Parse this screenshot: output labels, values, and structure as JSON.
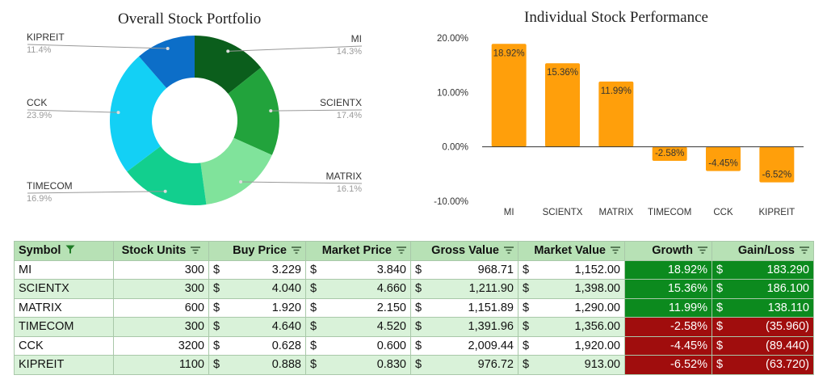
{
  "colors": {
    "donut": [
      "#0b5e1c",
      "#22a33c",
      "#80e39b",
      "#12cf8e",
      "#13d0f5",
      "#0c6ec8"
    ],
    "bar": "#ff9f0b",
    "header_bg": "#b7e1b5",
    "row_alt": "#d9f2d9",
    "growth_positive": "#0c8a1e",
    "growth_negative": "#a00d0d"
  },
  "chart_data": [
    {
      "type": "pie",
      "title": "Overall Stock Portfolio",
      "donut": true,
      "labels": [
        "MI",
        "SCIENTX",
        "MATRIX",
        "TIMECOM",
        "CCK",
        "KIPREIT"
      ],
      "values": [
        14.3,
        17.4,
        16.1,
        16.9,
        23.9,
        11.4
      ],
      "value_labels": [
        "14.3%",
        "17.4%",
        "16.1%",
        "16.9%",
        "23.9%",
        "11.4%"
      ],
      "legend": "none"
    },
    {
      "type": "bar",
      "title": "Individual Stock Performance",
      "categories": [
        "MI",
        "SCIENTX",
        "MATRIX",
        "TIMECOM",
        "CCK",
        "KIPREIT"
      ],
      "values": [
        18.92,
        15.36,
        11.99,
        -2.58,
        -4.45,
        -6.52
      ],
      "value_labels": [
        "18.92%",
        "15.36%",
        "11.99%",
        "-2.58%",
        "-4.45%",
        "-6.52%"
      ],
      "ylim": [
        -10,
        20
      ],
      "yticks": [
        20,
        10,
        0,
        -10
      ],
      "ytick_labels": [
        "20.00%",
        "10.00%",
        "0.00%",
        "-10.00%"
      ],
      "grid": false,
      "xlabel": "",
      "ylabel": ""
    }
  ],
  "table": {
    "headers": [
      "Symbol",
      "Stock Units",
      "Buy Price",
      "Market Price",
      "Gross Value",
      "Market Value",
      "Growth",
      "Gain/Loss"
    ],
    "currency": "$",
    "rows": [
      {
        "symbol": "MI",
        "units": "300",
        "buy": "3.229",
        "market": "3.840",
        "gross": "968.71",
        "mvalue": "1,152.00",
        "growth": "18.92%",
        "gain": "183.290"
      },
      {
        "symbol": "SCIENTX",
        "units": "300",
        "buy": "4.040",
        "market": "4.660",
        "gross": "1,211.90",
        "mvalue": "1,398.00",
        "growth": "15.36%",
        "gain": "186.100"
      },
      {
        "symbol": "MATRIX",
        "units": "600",
        "buy": "1.920",
        "market": "2.150",
        "gross": "1,151.89",
        "mvalue": "1,290.00",
        "growth": "11.99%",
        "gain": "138.110"
      },
      {
        "symbol": "TIMECOM",
        "units": "300",
        "buy": "4.640",
        "market": "4.520",
        "gross": "1,391.96",
        "mvalue": "1,356.00",
        "growth": "-2.58%",
        "gain": "(35.960)"
      },
      {
        "symbol": "CCK",
        "units": "3200",
        "buy": "0.628",
        "market": "0.600",
        "gross": "2,009.44",
        "mvalue": "1,920.00",
        "growth": "-4.45%",
        "gain": "(89.440)"
      },
      {
        "symbol": "KIPREIT",
        "units": "1100",
        "buy": "0.888",
        "market": "0.830",
        "gross": "976.72",
        "mvalue": "913.00",
        "growth": "-6.52%",
        "gain": "(63.720)"
      }
    ]
  }
}
